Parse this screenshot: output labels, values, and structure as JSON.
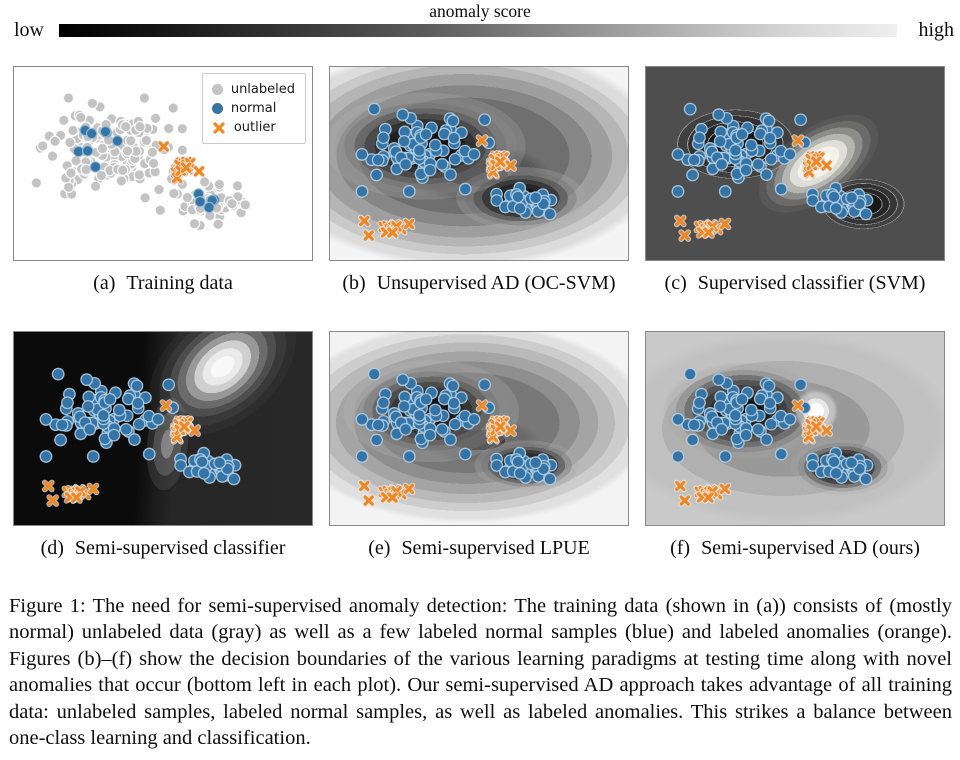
{
  "colorbar": {
    "title": "anomaly score",
    "low_label": "low",
    "high_label": "high",
    "start_color": "#000000",
    "end_color": "#efefef"
  },
  "legend": {
    "items": [
      {
        "label": "unlabeled",
        "marker": "circle",
        "color": "#c3c3c3"
      },
      {
        "label": "normal",
        "marker": "circle",
        "color": "#3474a6"
      },
      {
        "label": "outlier",
        "marker": "x",
        "color": "#ef8822"
      }
    ]
  },
  "panels": [
    {
      "tag": "(a)",
      "title": "Training data"
    },
    {
      "tag": "(b)",
      "title": "Unsupervised AD (OC-SVM)"
    },
    {
      "tag": "(c)",
      "title": "Supervised classifier (SVM)"
    },
    {
      "tag": "(d)",
      "title": "Semi-supervised classifier"
    },
    {
      "tag": "(e)",
      "title": "Semi-supervised LPUE"
    },
    {
      "tag": "(f)",
      "title": "Semi-supervised AD (ours)"
    }
  ],
  "figure_caption": "Figure 1: The need for semi-supervised anomaly detection: The training data (shown in (a)) consists of (mostly normal) unlabeled data (gray) as well as a few labeled normal samples (blue) and labeled anomalies (orange). Figures (b)–(f) show the decision boundaries of the various learning paradigms at testing time along with novel anomalies that occur (bottom left in each plot). Our semi-supervised AD approach takes advantage of all training data: unlabeled samples, labeled normal samples, as well as labeled anomalies. This strikes a balance between one-class learning and classification.",
  "chart_data": {
    "type": "scatter",
    "description": "Six 2D panels over the same synthetic data: one large normal cluster (upper left), one small normal cluster (lower right), a tight labeled-outlier cluster (center right) and novel anomalies (bottom left, panels b-f). Grayscale background of panels b-f encodes the anomaly score of each method (dark = low, light = high).",
    "colorbar": {
      "label": "anomaly score",
      "min_label": "low",
      "max_label": "high"
    },
    "point_colors": {
      "unlabeled": "#c3c3c3",
      "normal": "#3474a6",
      "outlier": "#ef8822"
    },
    "panels": [
      {
        "tag": "(a)",
        "title": "Training data",
        "points": "train",
        "field": "white background, no score field"
      },
      {
        "tag": "(b)",
        "title": "Unsupervised AD (OC-SVM)",
        "points": "test",
        "field": "dark low-score basin covering both clusters including labeled outliers; score rises toward panel margins"
      },
      {
        "tag": "(c)",
        "title": "Supervised classifier (SVM)",
        "points": "test",
        "field": "flat mid-gray; dark wells on the two normal clusters, bright high-score peak on labeled outliers; novel anomalies on flat region"
      },
      {
        "tag": "(d)",
        "title": "Semi-supervised classifier",
        "points": "test",
        "field": "black left half, bright wedge from top right narrowing onto labeled outliers; novel anomalies on black region"
      },
      {
        "tag": "(e)",
        "title": "Semi-supervised LPUE",
        "points": "test",
        "field": "smooth dark basins on both clusters, light margins, similar to (b)"
      },
      {
        "tag": "(f)",
        "title": "Semi-supervised AD (ours)",
        "points": "test",
        "field": "light gray; dark basins on normal clusters plus a small bright peak on labeled outliers"
      }
    ],
    "scatter": {
      "train": {
        "series": [
          {
            "name": "unlabeled",
            "marker": "circle",
            "fill": "#c3c3c3",
            "edge": "#ffffff",
            "r": 5.2,
            "seed": 11,
            "clusters": [
              {
                "cx": 0.32,
                "cy": 0.42,
                "sx": 0.098,
                "sy": 0.104,
                "n": 165
              },
              {
                "cx": 0.645,
                "cy": 0.7,
                "sx": 0.062,
                "sy": 0.052,
                "n": 58
              }
            ]
          },
          {
            "name": "normal",
            "marker": "circle",
            "fill": "#3474a6",
            "edge": "#9fbdd4",
            "r": 5.2,
            "seed": 21,
            "clusters": [
              {
                "cx": 0.3,
                "cy": 0.4,
                "sx": 0.05,
                "sy": 0.062,
                "n": 8
              },
              {
                "cx": 0.635,
                "cy": 0.685,
                "sx": 0.03,
                "sy": 0.035,
                "n": 5
              }
            ]
          },
          {
            "name": "outlier",
            "marker": "x",
            "color": "#ef8822",
            "seed": 31,
            "clusters": [
              {
                "cx": 0.57,
                "cy": 0.5,
                "sx": 0.027,
                "sy": 0.038,
                "n": 19
              }
            ]
          }
        ]
      },
      "test": {
        "series": [
          {
            "name": "normal",
            "marker": "circle",
            "fill": "#3474a6",
            "edge": "#b9d2e4",
            "r": 5.8,
            "seed": 41,
            "clusters": [
              {
                "cx": 0.32,
                "cy": 0.43,
                "sx": 0.085,
                "sy": 0.085,
                "n": 80
              },
              {
                "cx": 0.655,
                "cy": 0.7,
                "sx": 0.055,
                "sy": 0.046,
                "n": 30
              }
            ]
          },
          {
            "name": "outlier_known",
            "marker": "x",
            "color": "#ef8822",
            "seed": 31,
            "clusters": [
              {
                "cx": 0.565,
                "cy": 0.47,
                "sx": 0.022,
                "sy": 0.038,
                "n": 19
              }
            ]
          },
          {
            "name": "outlier_novel",
            "marker": "x",
            "color": "#ef8822",
            "seed": 61,
            "clusters": [
              {
                "cx": 0.205,
                "cy": 0.835,
                "sx": 0.018,
                "sy": 0.02,
                "n": 11
              }
            ],
            "extra": [
              [
                0.115,
                0.795
              ],
              [
                0.13,
                0.87
              ],
              [
                0.265,
                0.81
              ]
            ]
          }
        ]
      }
    }
  }
}
